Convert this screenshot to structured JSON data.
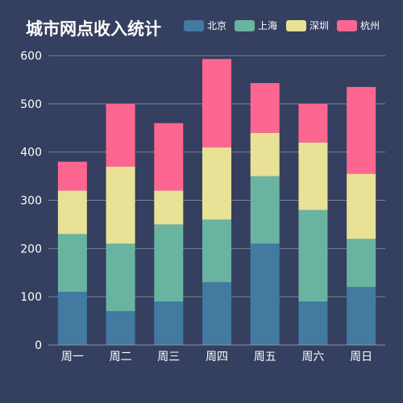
{
  "chart_data": {
    "type": "bar",
    "stacked": true,
    "title": "城市网点收入统计",
    "categories": [
      "周一",
      "周二",
      "周三",
      "周四",
      "周五",
      "周六",
      "周日"
    ],
    "series": [
      {
        "name": "北京",
        "color": "#427aa0",
        "values": [
          110,
          70,
          90,
          130,
          210,
          90,
          120
        ]
      },
      {
        "name": "上海",
        "color": "#69b4a1",
        "values": [
          120,
          140,
          160,
          130,
          140,
          190,
          100
        ]
      },
      {
        "name": "深圳",
        "color": "#e9e196",
        "values": [
          90,
          160,
          70,
          150,
          90,
          140,
          135
        ]
      },
      {
        "name": "杭州",
        "color": "#fd6690",
        "values": [
          60,
          130,
          140,
          183,
          103,
          80,
          180
        ]
      }
    ],
    "ylim": [
      0,
      600
    ],
    "yticks": [
      0,
      100,
      200,
      300,
      400,
      500,
      600
    ],
    "grid": true,
    "legend_position": "top-right",
    "background": "#353f5f"
  }
}
